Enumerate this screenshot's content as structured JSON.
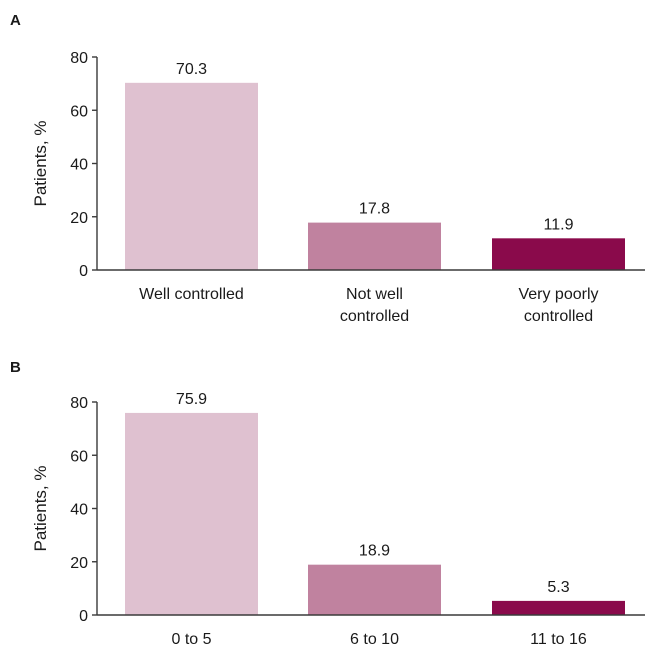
{
  "chart_data": [
    {
      "panel": "A",
      "type": "bar",
      "ylabel": "Patients, %",
      "ylim": [
        0,
        80
      ],
      "yticks": [
        0,
        20,
        40,
        60,
        80
      ],
      "categories": [
        [
          "Well controlled"
        ],
        [
          "Not well",
          "controlled"
        ],
        [
          "Very poorly",
          "controlled"
        ]
      ],
      "values": [
        70.3,
        17.8,
        11.9
      ],
      "value_labels": [
        "70.3",
        "17.8",
        "11.9"
      ],
      "colors": [
        "#dfc1d0",
        "#c0829f",
        "#8a0a4b"
      ],
      "grid": false,
      "legend": "none"
    },
    {
      "panel": "B",
      "type": "bar",
      "ylabel": "Patients, %",
      "ylim": [
        0,
        80
      ],
      "yticks": [
        0,
        20,
        40,
        60,
        80
      ],
      "categories": [
        [
          "0 to 5"
        ],
        [
          "6 to 10"
        ],
        [
          "11 to 16"
        ]
      ],
      "values": [
        75.9,
        18.9,
        5.3
      ],
      "value_labels": [
        "75.9",
        "18.9",
        "5.3"
      ],
      "colors": [
        "#dfc1d0",
        "#c0829f",
        "#8a0a4b"
      ],
      "grid": false,
      "legend": "none"
    }
  ]
}
